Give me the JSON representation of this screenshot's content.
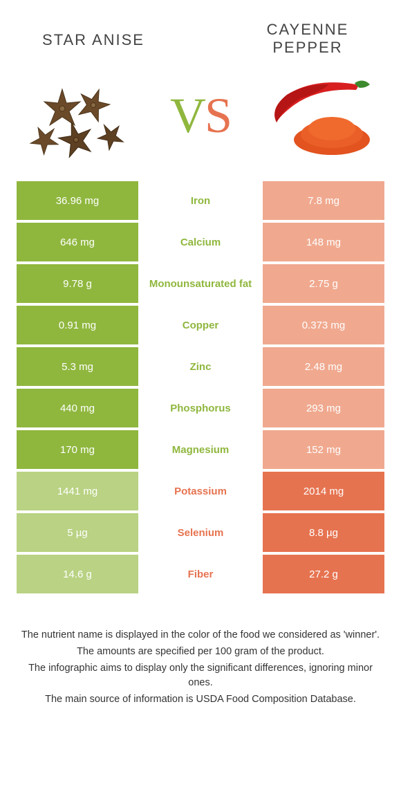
{
  "colors": {
    "left": "#8fb73e",
    "right": "#e67350",
    "left_dim": "#b9d283",
    "right_dim": "#f0a98f",
    "white": "#ffffff"
  },
  "header": {
    "left_title": "STAR ANISE",
    "right_title": "CAYENNE PEPPER"
  },
  "vs": {
    "v": "V",
    "s": "S"
  },
  "rows": [
    {
      "label": "Iron",
      "left": "36.96 mg",
      "right": "7.8 mg",
      "winner": "left"
    },
    {
      "label": "Calcium",
      "left": "646 mg",
      "right": "148 mg",
      "winner": "left"
    },
    {
      "label": "Monounsaturated fat",
      "left": "9.78 g",
      "right": "2.75 g",
      "winner": "left"
    },
    {
      "label": "Copper",
      "left": "0.91 mg",
      "right": "0.373 mg",
      "winner": "left"
    },
    {
      "label": "Zinc",
      "left": "5.3 mg",
      "right": "2.48 mg",
      "winner": "left"
    },
    {
      "label": "Phosphorus",
      "left": "440 mg",
      "right": "293 mg",
      "winner": "left"
    },
    {
      "label": "Magnesium",
      "left": "170 mg",
      "right": "152 mg",
      "winner": "left"
    },
    {
      "label": "Potassium",
      "left": "1441 mg",
      "right": "2014 mg",
      "winner": "right"
    },
    {
      "label": "Selenium",
      "left": "5 µg",
      "right": "8.8 µg",
      "winner": "right"
    },
    {
      "label": "Fiber",
      "left": "14.6 g",
      "right": "27.2 g",
      "winner": "right"
    }
  ],
  "footer": {
    "l1": "The nutrient name is displayed in the color of the food we considered as 'winner'.",
    "l2": "The amounts are specified per 100 gram of the product.",
    "l3": "The infographic aims to display only the significant differences, ignoring minor ones.",
    "l4": "The main source of information is USDA Food Composition Database."
  }
}
